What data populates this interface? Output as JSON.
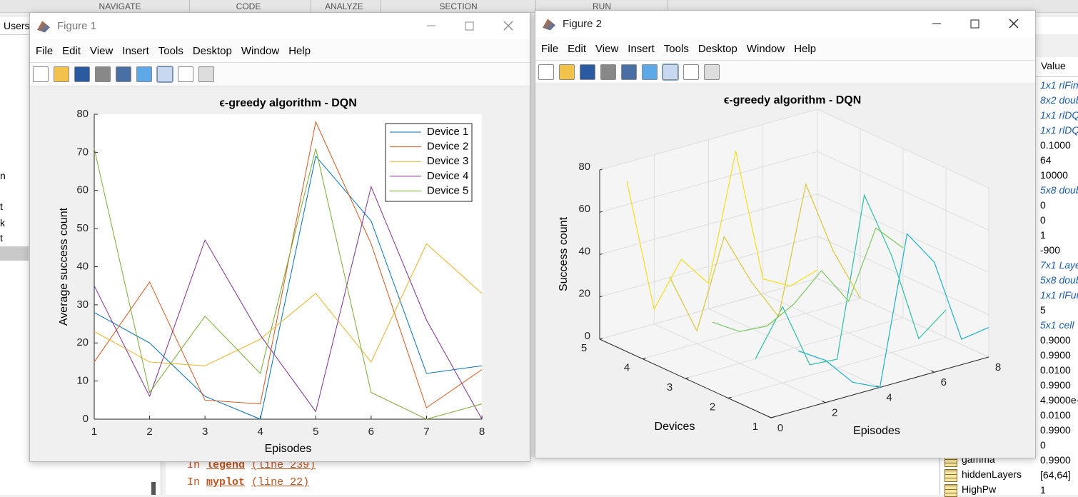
{
  "desktop": {
    "tabs": [
      "NAVIGATE",
      "CODE",
      "ANALYZE",
      "SECTION",
      "RUN"
    ],
    "path_label": "Users",
    "left_fragments": [
      "n",
      "t",
      "k",
      "t"
    ],
    "workspace": {
      "header": "Value",
      "values": [
        "1x1 rlFin",
        "8x2 doub",
        "1x1 rlDQ",
        "1x1 rlDQ",
        "0.1000",
        "64",
        "10000",
        "5x8 doub",
        "0",
        "0",
        "1",
        "-900",
        "7x1 Laye",
        "5x8 doub",
        "1x1 rlFun",
        "5",
        "5x1 cell",
        "0.9000",
        "0.9900",
        "0.0100",
        "0.9900",
        "4.9000e-",
        "0.0100",
        "0.9900",
        "0",
        "0.9900",
        "[64,64]",
        "1"
      ],
      "names": [
        "gamma",
        "hiddenLayers",
        "HighPw"
      ]
    },
    "command_window": {
      "lines": [
        {
          "prefix": "In",
          "link": "legend",
          "location": "(line 239)"
        },
        {
          "prefix": "In",
          "link": "myplot",
          "location": "(line 22)"
        }
      ]
    }
  },
  "windows": [
    {
      "title": "Figure 1",
      "menus": [
        "File",
        "Edit",
        "View",
        "Insert",
        "Tools",
        "Desktop",
        "Window",
        "Help"
      ]
    },
    {
      "title": "Figure 2",
      "menus": [
        "File",
        "Edit",
        "View",
        "Insert",
        "Tools",
        "Desktop",
        "Window",
        "Help"
      ]
    }
  ],
  "chart_data": [
    {
      "type": "line",
      "title": "ϵ-greedy algorithm - DQN",
      "xlabel": "Episodes",
      "ylabel": "Average success count",
      "x": [
        1,
        2,
        3,
        4,
        5,
        6,
        7,
        8
      ],
      "xlim": [
        1,
        8
      ],
      "xticks": [
        1,
        2,
        3,
        4,
        5,
        6,
        7,
        8
      ],
      "ylim": [
        0,
        80
      ],
      "yticks": [
        0,
        10,
        20,
        30,
        40,
        50,
        60,
        70,
        80
      ],
      "legend": "upper right",
      "series": [
        {
          "name": "Device 1",
          "color": "#0072bd",
          "values": [
            28,
            20,
            6,
            0,
            69,
            52,
            12,
            14
          ]
        },
        {
          "name": "Device 2",
          "color": "#d95319",
          "values": [
            15,
            36,
            5,
            4,
            78,
            46,
            3,
            13
          ]
        },
        {
          "name": "Device 3",
          "color": "#edb120",
          "values": [
            23,
            15,
            14,
            21,
            33,
            15,
            46,
            33
          ]
        },
        {
          "name": "Device 4",
          "color": "#7e2f8e",
          "values": [
            35,
            6,
            47,
            22,
            2,
            61,
            26,
            0
          ]
        },
        {
          "name": "Device 5",
          "color": "#77ac30",
          "values": [
            71,
            7,
            27,
            12,
            71,
            7,
            0,
            4
          ]
        }
      ]
    },
    {
      "type": "line3d",
      "title": "ϵ-greedy algorithm - DQN",
      "xlabel": "Episodes",
      "ylabel": "Devices",
      "zlabel": "Success count",
      "x": [
        1,
        2,
        3,
        4,
        5,
        6,
        7,
        8
      ],
      "xlim": [
        0,
        8
      ],
      "xticks": [
        0,
        2,
        4,
        6,
        8
      ],
      "ylim": [
        1,
        5
      ],
      "yticks": [
        1,
        2,
        3,
        4,
        5
      ],
      "zlim": [
        0,
        80
      ],
      "zticks": [
        0,
        20,
        40,
        60,
        80
      ],
      "grid": true,
      "series": [
        {
          "color": "#1bb3c8",
          "values": [
            28,
            20,
            6,
            0,
            69,
            52,
            12,
            14
          ]
        },
        {
          "color": "#2bc0a8",
          "values": [
            15,
            36,
            5,
            4,
            78,
            46,
            3,
            13
          ]
        },
        {
          "color": "#7cc860",
          "values": [
            23,
            15,
            14,
            21,
            33,
            15,
            46,
            33
          ]
        },
        {
          "color": "#d8c83a",
          "values": [
            35,
            6,
            47,
            22,
            2,
            61,
            26,
            0
          ]
        },
        {
          "color": "#f2e01c",
          "values": [
            71,
            7,
            27,
            12,
            71,
            7,
            0,
            4
          ]
        }
      ]
    }
  ]
}
